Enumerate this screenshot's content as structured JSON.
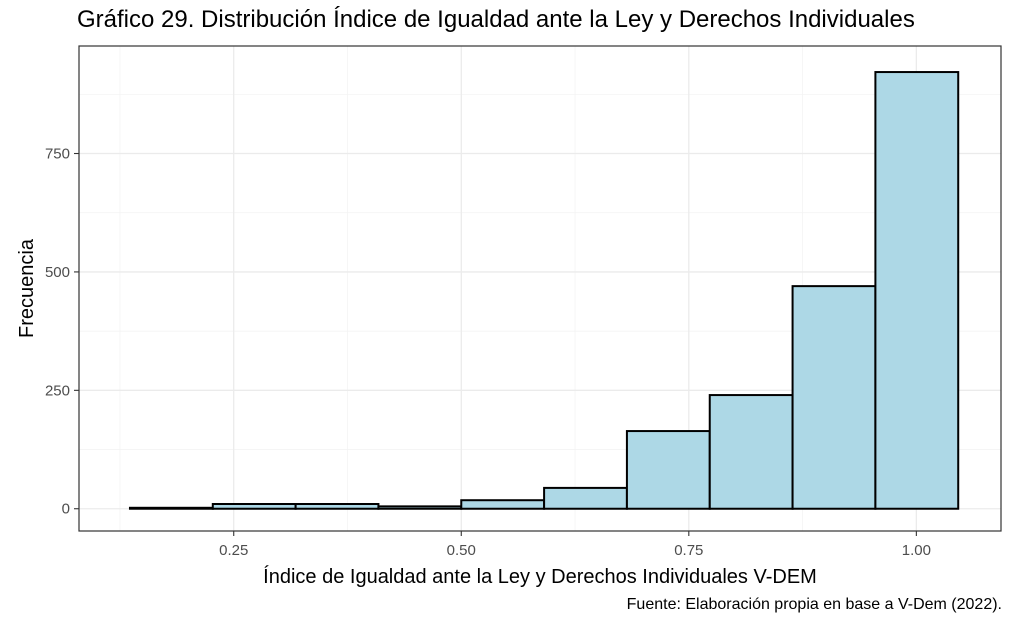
{
  "chart_data": {
    "type": "bar",
    "title": "Gráfico 29. Distribución Índice de Igualdad ante la Ley y Derechos Individuales",
    "xlabel": "Índice de Igualdad ante la Ley y Derechos Individuales V-DEM",
    "ylabel": "Frecuencia",
    "caption": "Fuente: Elaboración propia en base a V-Dem (2022).",
    "bin_edges": [
      0.136,
      0.227,
      0.318,
      0.409,
      0.5,
      0.591,
      0.682,
      0.773,
      0.864,
      0.955,
      1.046
    ],
    "values": [
      2,
      10,
      10,
      5,
      18,
      44,
      164,
      240,
      470,
      922
    ],
    "xlim": [
      0.08,
      1.093
    ],
    "ylim": [
      -47,
      977
    ],
    "x_ticks": [
      0.25,
      0.5,
      0.75,
      1.0
    ],
    "x_tick_labels": [
      "0.25",
      "0.50",
      "0.75",
      "1.00"
    ],
    "y_ticks": [
      0,
      250,
      500,
      750
    ],
    "y_tick_labels": [
      "0",
      "250",
      "500",
      "750"
    ],
    "bar_color": "#add8e6",
    "bar_outline": "#000000",
    "grid": true,
    "legend": "none"
  }
}
